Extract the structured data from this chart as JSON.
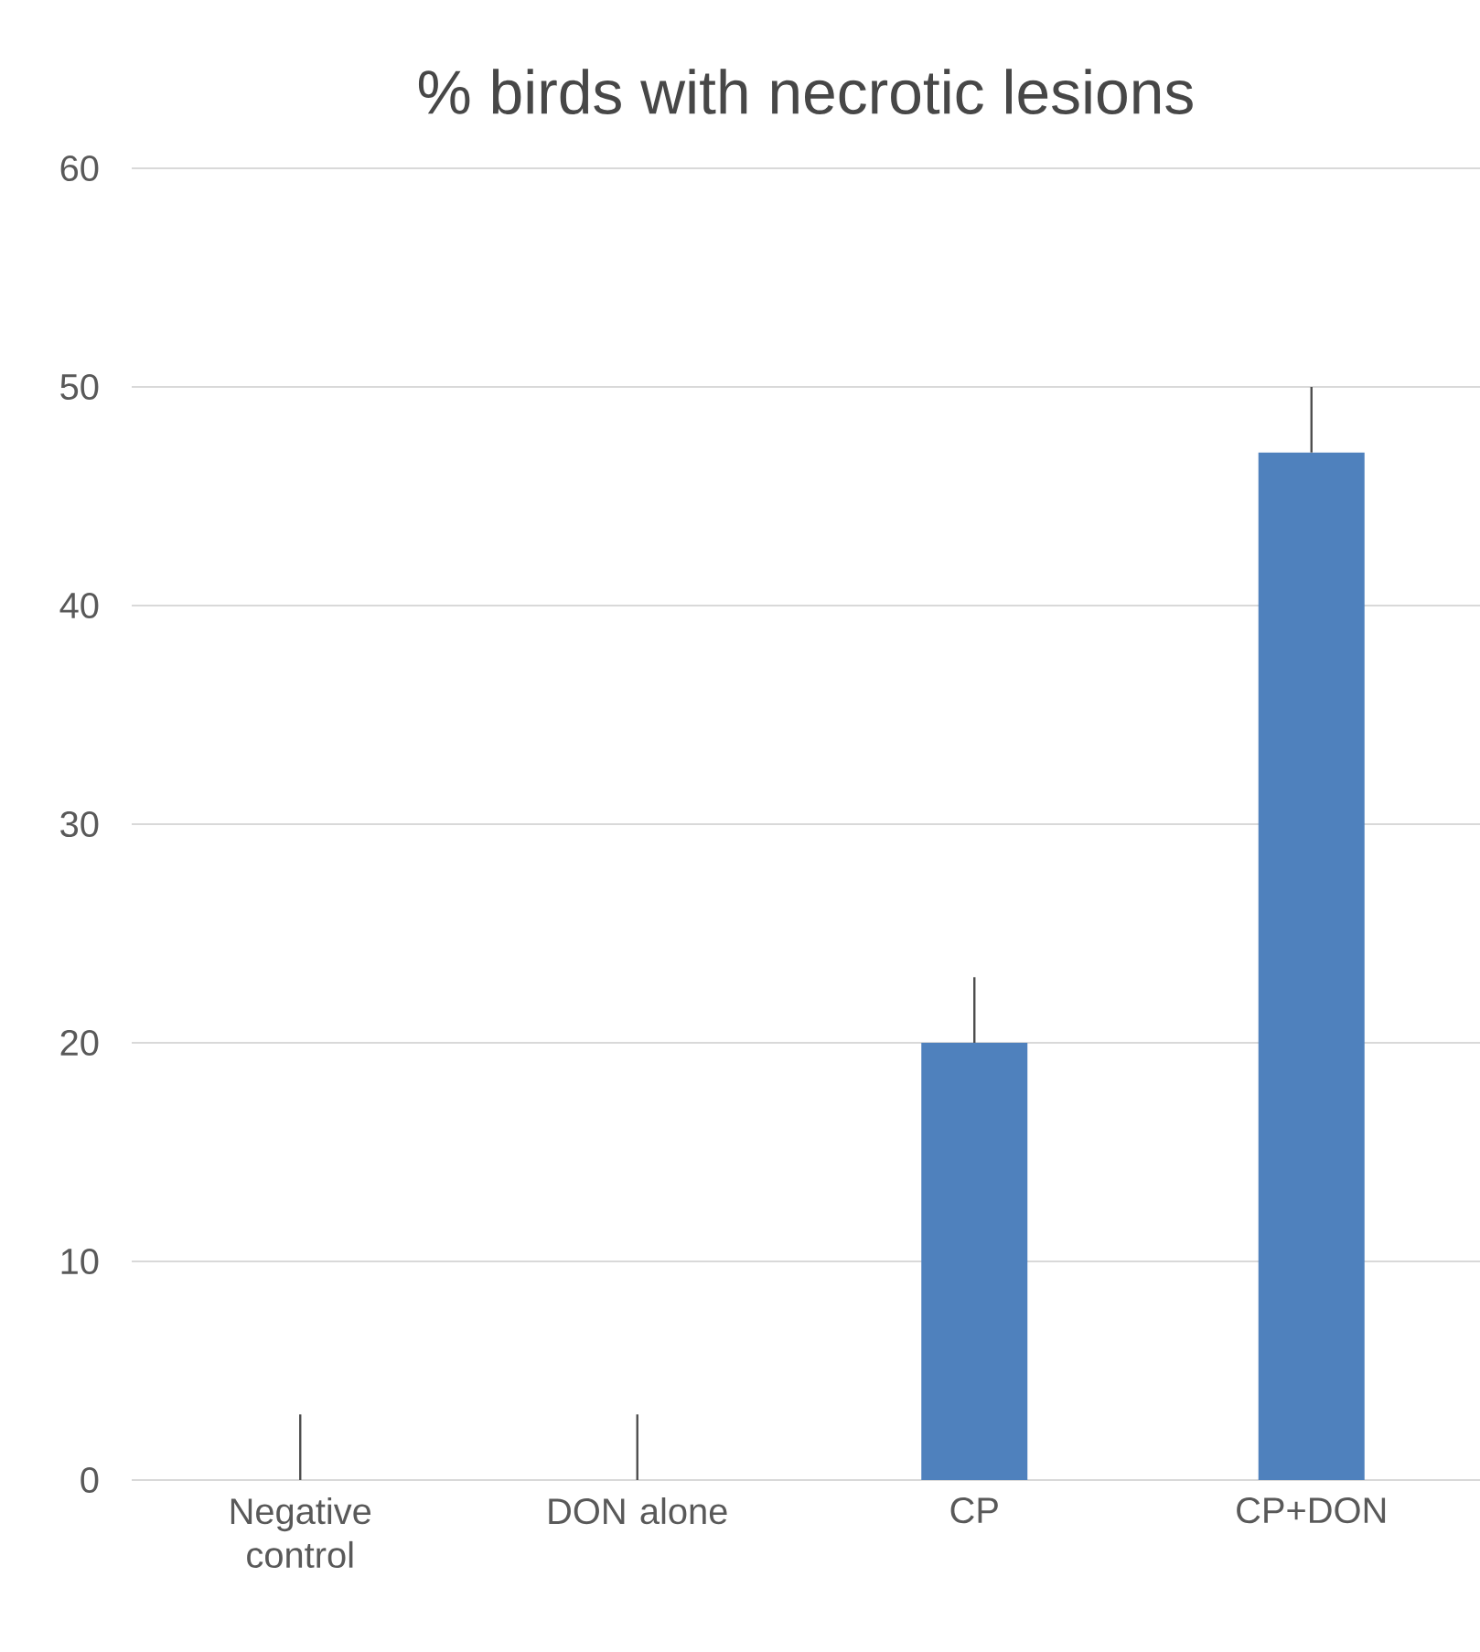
{
  "chart_data": {
    "type": "bar",
    "title": "% birds with necrotic lesions",
    "categories": [
      "Negative control",
      "DON alone",
      "CP",
      "CP+DON"
    ],
    "values": [
      0,
      0,
      20,
      47
    ],
    "errors": [
      [
        0,
        3
      ],
      [
        0,
        3
      ],
      [
        20,
        23
      ],
      [
        47,
        50
      ]
    ],
    "color": "#4f81bd",
    "ylim": [
      0,
      60
    ],
    "yticks": [
      0,
      10,
      20,
      30,
      40,
      50,
      60
    ],
    "grid": "y"
  }
}
